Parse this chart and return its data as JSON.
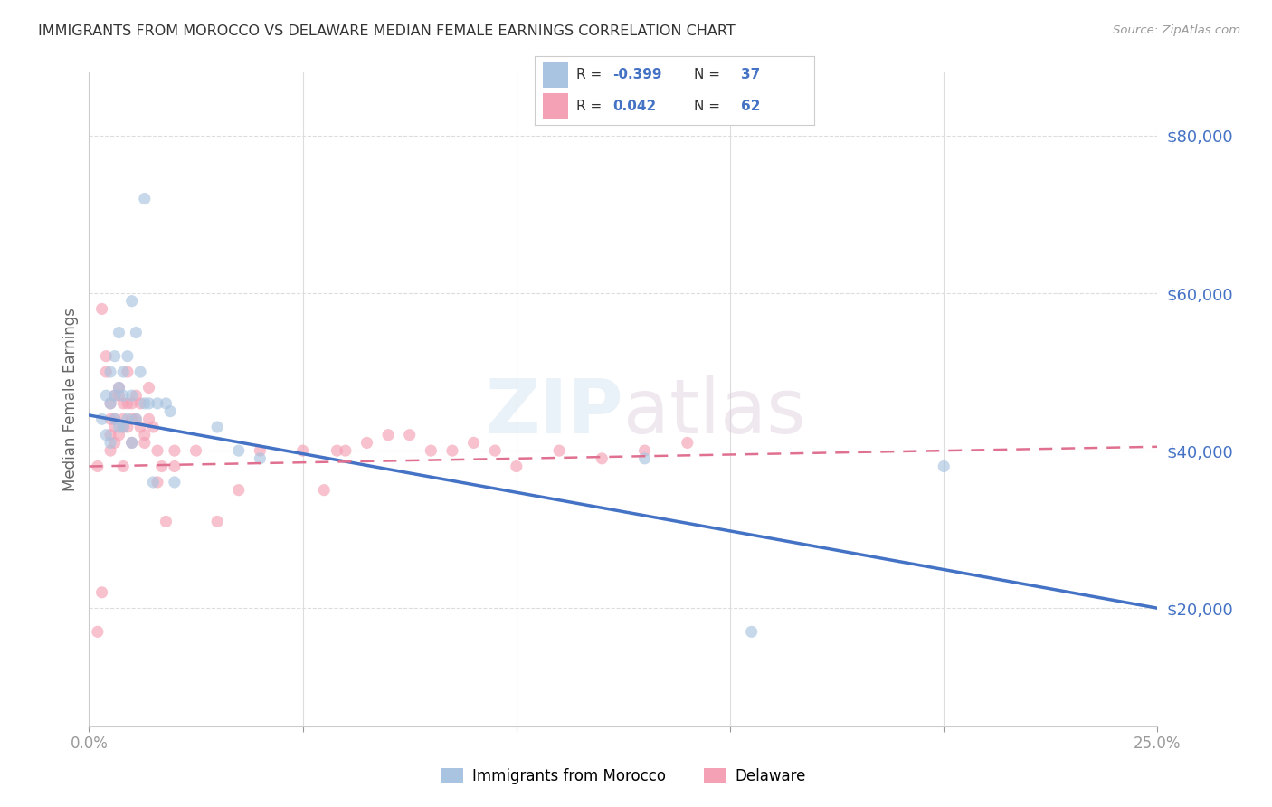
{
  "title": "IMMIGRANTS FROM MOROCCO VS DELAWARE MEDIAN FEMALE EARNINGS CORRELATION CHART",
  "source": "Source: ZipAtlas.com",
  "ylabel": "Median Female Earnings",
  "ytick_labels": [
    "$20,000",
    "$40,000",
    "$60,000",
    "$80,000"
  ],
  "ytick_values": [
    20000,
    40000,
    60000,
    80000
  ],
  "ymin": 5000,
  "ymax": 88000,
  "xmin": 0.0,
  "xmax": 0.25,
  "legend_label_blue": "Immigrants from Morocco",
  "legend_label_pink": "Delaware",
  "watermark_zip": "ZIP",
  "watermark_atlas": "atlas",
  "blue_r": "-0.399",
  "blue_n": "37",
  "pink_r": "0.042",
  "pink_n": "62",
  "blue_scatter_x": [
    0.003,
    0.004,
    0.004,
    0.005,
    0.005,
    0.005,
    0.006,
    0.006,
    0.006,
    0.007,
    0.007,
    0.007,
    0.008,
    0.008,
    0.008,
    0.009,
    0.009,
    0.01,
    0.01,
    0.01,
    0.011,
    0.011,
    0.012,
    0.013,
    0.014,
    0.015,
    0.016,
    0.018,
    0.019,
    0.02,
    0.03,
    0.035,
    0.04,
    0.13,
    0.155,
    0.2
  ],
  "blue_scatter_y": [
    44000,
    47000,
    42000,
    50000,
    46000,
    41000,
    52000,
    47000,
    44000,
    55000,
    48000,
    43000,
    50000,
    47000,
    43000,
    52000,
    44000,
    59000,
    47000,
    41000,
    55000,
    44000,
    50000,
    46000,
    46000,
    36000,
    46000,
    46000,
    45000,
    36000,
    43000,
    40000,
    39000,
    39000,
    17000,
    38000
  ],
  "blue_outlier_x": [
    0.013
  ],
  "blue_outlier_y": [
    72000
  ],
  "pink_scatter_x": [
    0.002,
    0.002,
    0.003,
    0.003,
    0.004,
    0.004,
    0.005,
    0.005,
    0.005,
    0.005,
    0.006,
    0.006,
    0.006,
    0.006,
    0.007,
    0.007,
    0.007,
    0.008,
    0.008,
    0.008,
    0.008,
    0.009,
    0.009,
    0.009,
    0.01,
    0.01,
    0.01,
    0.011,
    0.011,
    0.012,
    0.012,
    0.013,
    0.013,
    0.014,
    0.014,
    0.015,
    0.016,
    0.016,
    0.017,
    0.018,
    0.02,
    0.02,
    0.025,
    0.03,
    0.035,
    0.04,
    0.05,
    0.055,
    0.058,
    0.06,
    0.065,
    0.07,
    0.075,
    0.08,
    0.085,
    0.09,
    0.095,
    0.1,
    0.11,
    0.12,
    0.13,
    0.14
  ],
  "pink_scatter_y": [
    38000,
    17000,
    58000,
    22000,
    52000,
    50000,
    46000,
    44000,
    42000,
    40000,
    47000,
    44000,
    43000,
    41000,
    48000,
    47000,
    42000,
    46000,
    44000,
    43000,
    38000,
    50000,
    46000,
    43000,
    46000,
    44000,
    41000,
    47000,
    44000,
    46000,
    43000,
    42000,
    41000,
    48000,
    44000,
    43000,
    40000,
    36000,
    38000,
    31000,
    40000,
    38000,
    40000,
    31000,
    35000,
    40000,
    40000,
    35000,
    40000,
    40000,
    41000,
    42000,
    42000,
    40000,
    40000,
    41000,
    40000,
    38000,
    40000,
    39000,
    40000,
    41000
  ],
  "background_color": "#ffffff",
  "plot_bg_color": "#ffffff",
  "grid_color": "#dddddd",
  "blue_color": "#a8c4e0",
  "pink_color": "#f4a0b5",
  "blue_line_color": "#4472c4",
  "pink_line_color": "#e07090",
  "tick_color": "#4472c4",
  "title_color": "#333333",
  "axis_color": "#cccccc",
  "marker_size": 90,
  "marker_alpha": 0.65,
  "legend_text_color": "#333333",
  "legend_val_color": "#4472c4"
}
